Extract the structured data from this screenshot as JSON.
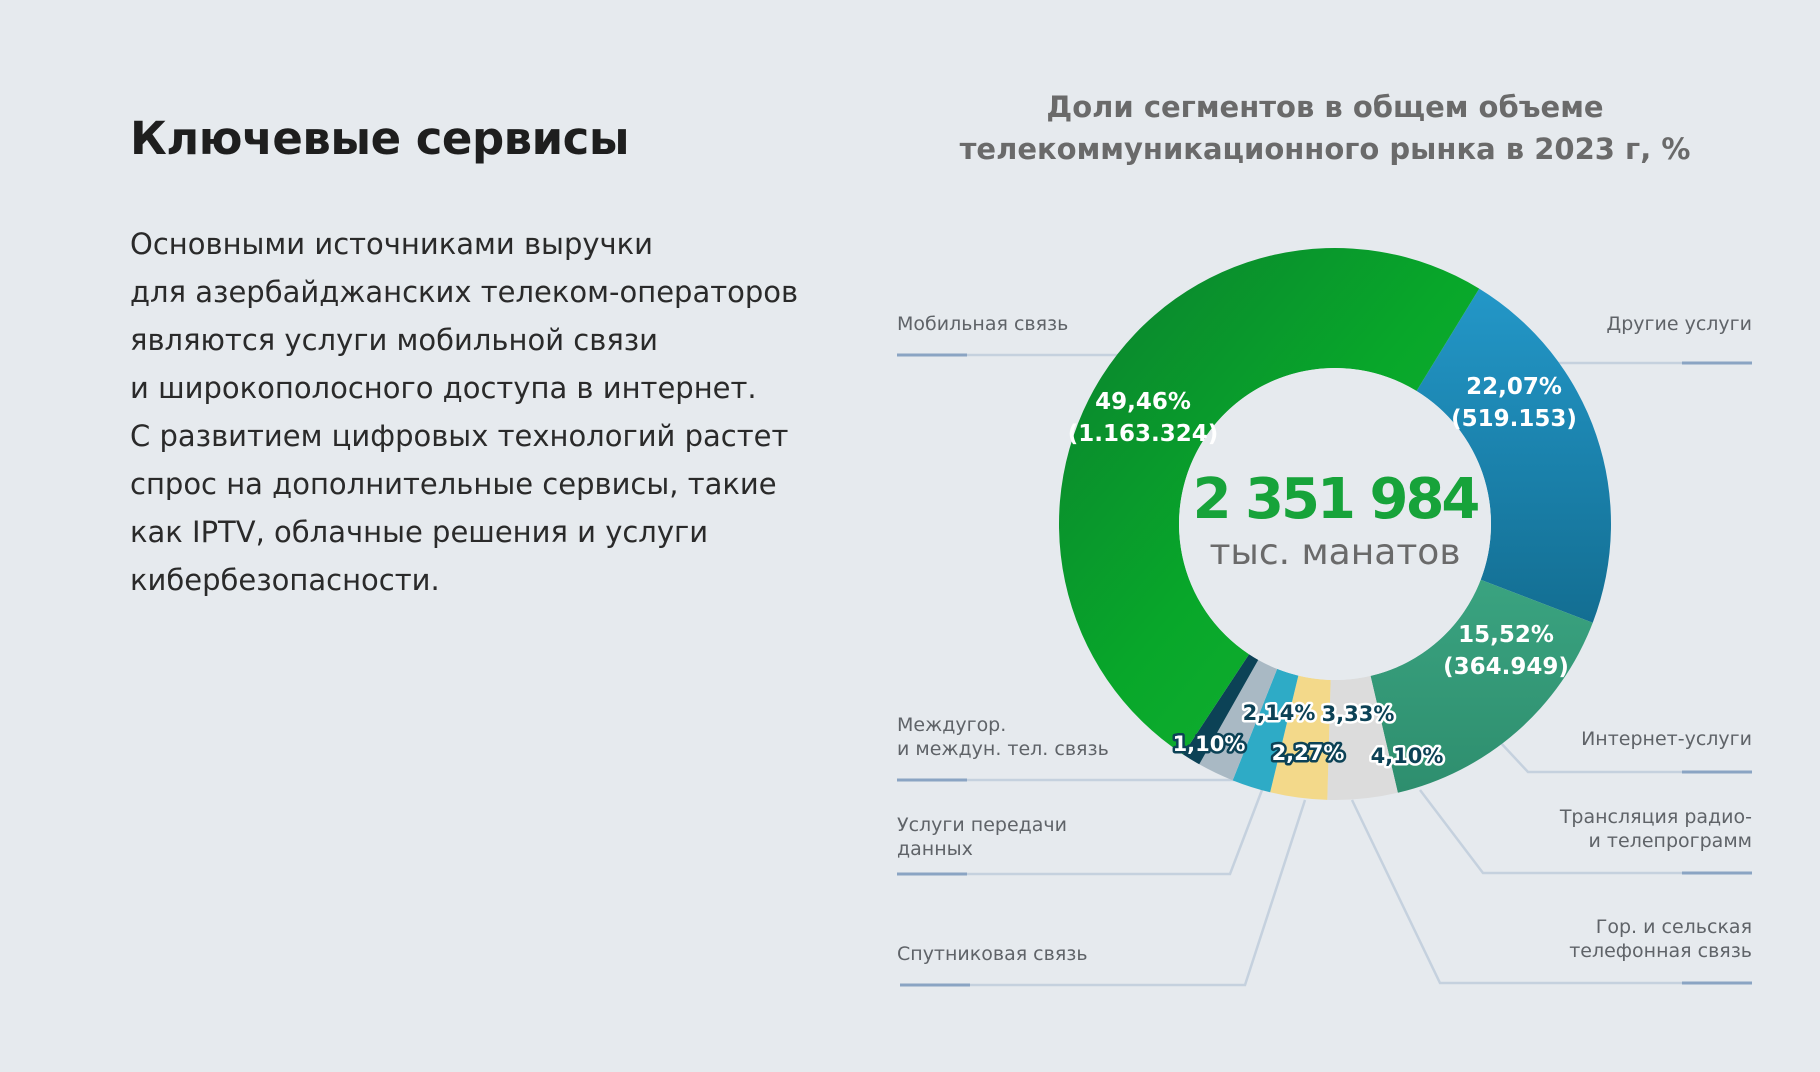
{
  "heading": "Ключевые сервисы",
  "description": [
    "Основными источниками выручки",
    "для азербайджанских телеком-операторов",
    "являются услуги мобильной связи",
    "и широкополосного доступа в интернет.",
    "С развитием цифровых технологий растет",
    "спрос на дополнительные сервисы, такие",
    "как IPTV, облачные решения и услуги",
    "кибербезопасности."
  ],
  "chart_data": {
    "type": "pie",
    "title": [
      "Доли сегментов в общем объеме",
      "телекоммуникационного рынка в 2023 г, %"
    ],
    "total": {
      "value": "2 351 984",
      "unit": "тыс. манатов"
    },
    "segments": [
      {
        "name": "Другие услуги",
        "percent": 22.07,
        "value": 519.153,
        "label_pct": "22,07%",
        "label_val": "(519.153)",
        "legend": [
          "Другие услуги"
        ],
        "color": "#1a88b5"
      },
      {
        "name": "Интернет-услуги",
        "percent": 15.52,
        "value": 364.949,
        "label_pct": "15,52%",
        "label_val": "(364.949)",
        "legend": [
          "Интернет-услуги"
        ],
        "color": "#34997a"
      },
      {
        "name": "Трансляция радио- и телепрограмм",
        "percent": 4.1,
        "label_pct": "4,10%",
        "legend": [
          "Трансляция радио-",
          "и телепрограмм"
        ],
        "color": "#dcdcdc"
      },
      {
        "name": "Гор. и сельская телефонная связь",
        "percent": 3.33,
        "label_pct": "3,33%",
        "legend": [
          "Гор. и сельская",
          "телефонная связь"
        ],
        "color": "#f3d98a"
      },
      {
        "name": "Спутниковая связь",
        "percent": 2.27,
        "label_pct": "2,27%",
        "legend": [
          "Спутниковая связь"
        ],
        "color": "#2eabc6"
      },
      {
        "name": "Услуги передачи данных",
        "percent": 2.14,
        "label_pct": "2,14%",
        "legend": [
          "Услуги передачи",
          "данных"
        ],
        "color": "#a9b9c4"
      },
      {
        "name": "Междугор. и междун. тел. связь",
        "percent": 1.1,
        "label_pct": "1,10%",
        "legend": [
          "Междугор.",
          "и междун. тел. связь"
        ],
        "color": "#0c4256"
      },
      {
        "name": "Мобильная связь",
        "percent": 49.46,
        "value": 1163.324,
        "label_pct": "49,46%",
        "label_val": "(1.163.324)",
        "legend": [
          "Мобильная связь"
        ],
        "color": "#0aa12a"
      }
    ]
  }
}
